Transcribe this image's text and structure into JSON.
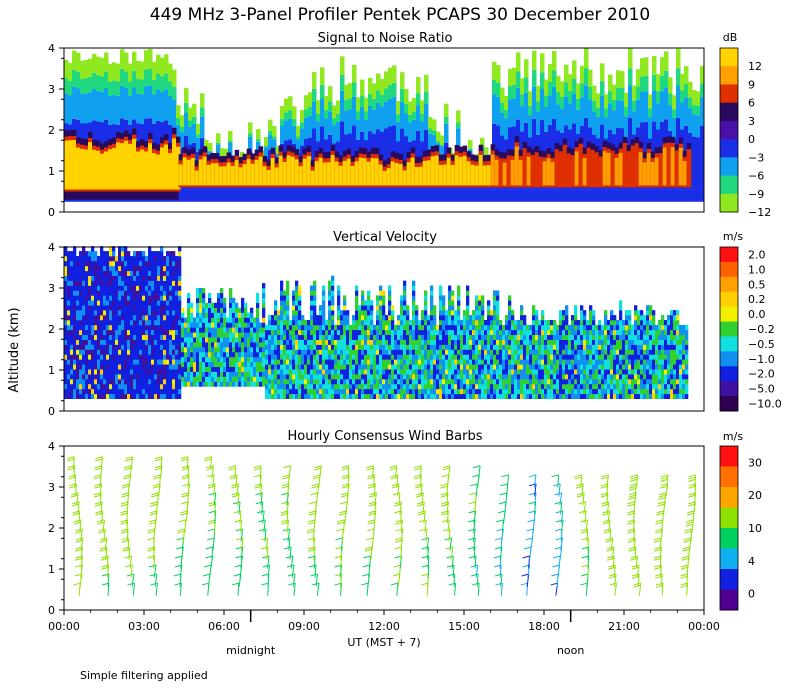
{
  "figure": {
    "title": "449 MHz 3-Panel Profiler Pentek PCAPS 30 December 2010",
    "ylabel": "Altitude (km)",
    "xlabel": "UT  (MST + 7)",
    "x_ticks": [
      "00:00",
      "03:00",
      "06:00",
      "09:00",
      "12:00",
      "15:00",
      "18:00",
      "21:00",
      "00:00"
    ],
    "day_markers": [
      {
        "label": "midnight",
        "hour": 7
      },
      {
        "label": "noon",
        "hour": 19
      }
    ],
    "footnote": "Simple filtering applied"
  },
  "chart_data": [
    {
      "type": "heatmap",
      "title": "Signal to Noise Ratio",
      "xlabel": "UT (MST + 7)",
      "ylabel": "Altitude (km)",
      "xlim": [
        0,
        24
      ],
      "ylim": [
        0,
        4
      ],
      "y_ticks": [
        0,
        1,
        2,
        3,
        4
      ],
      "colorbar": {
        "unit": "dB",
        "labels": [
          "12",
          "9",
          "6",
          "3",
          "0",
          "−3",
          "−6",
          "−9",
          "−12"
        ],
        "colors": [
          "#ffd200",
          "#ffa000",
          "#e03000",
          "#2a0a5c",
          "#4a10a8",
          "#1a2ee8",
          "#10a0f0",
          "#20d880",
          "#90e820"
        ]
      },
      "strong_layers": [
        {
          "start": 0.0,
          "end": 4.3,
          "bottom": 0.5,
          "top": 1.6,
          "snr_db": 13
        },
        {
          "start": 4.3,
          "end": 16.0,
          "bottom": 0.6,
          "top": 1.2,
          "snr_db": 12
        },
        {
          "start": 16.0,
          "end": 23.4,
          "bottom": 0.6,
          "top": 1.4,
          "snr_db": 8
        }
      ]
    },
    {
      "type": "heatmap",
      "title": "Vertical Velocity",
      "xlabel": "UT (MST + 7)",
      "ylabel": "Altitude (km)",
      "xlim": [
        0,
        24
      ],
      "ylim": [
        0,
        4
      ],
      "y_ticks": [
        0,
        1,
        2,
        3,
        4
      ],
      "colorbar": {
        "unit": "m/s",
        "labels": [
          "2.0",
          "1.0",
          "0.5",
          "0.2",
          "0.0",
          "−0.2",
          "−0.5",
          "−1.0",
          "−2.0",
          "−5.0",
          "−10.0"
        ],
        "colors": [
          "#ff1010",
          "#ff6000",
          "#ffa000",
          "#ffd000",
          "#f0f000",
          "#30d030",
          "#10e0e0",
          "#1090f0",
          "#1020e0",
          "#4010a0",
          "#300050"
        ]
      }
    },
    {
      "type": "wind_barbs",
      "title": "Hourly Consensus Wind Barbs",
      "xlabel": "UT (MST + 7)",
      "ylabel": "Altitude (km)",
      "xlim": [
        0,
        24
      ],
      "ylim": [
        0,
        4
      ],
      "y_ticks": [
        0,
        1,
        2,
        3,
        4
      ],
      "colorbar": {
        "unit": "m/s",
        "labels": [
          "30",
          "20",
          "10",
          "4",
          "0"
        ],
        "colors": [
          "#ff1010",
          "#ff7000",
          "#ffa500",
          "#90e000",
          "#00d060",
          "#10b0f0",
          "#1020e0",
          "#500090"
        ]
      },
      "profile_hours": [
        0.5,
        1.5,
        2.5,
        3.5,
        4.5,
        5.5,
        6.5,
        7.5,
        8.5,
        9.5,
        10.5,
        11.5,
        12.5,
        13.5,
        14.5,
        15.5,
        16.5,
        17.5,
        18.5,
        19.5,
        20.5,
        21.5,
        22.5,
        23.5
      ],
      "speed_ms": [
        12,
        12,
        11,
        10,
        9,
        8,
        8,
        8,
        8,
        9,
        9,
        10,
        9,
        9,
        8,
        7,
        6,
        4,
        5,
        9,
        13,
        14,
        14,
        14
      ]
    }
  ]
}
